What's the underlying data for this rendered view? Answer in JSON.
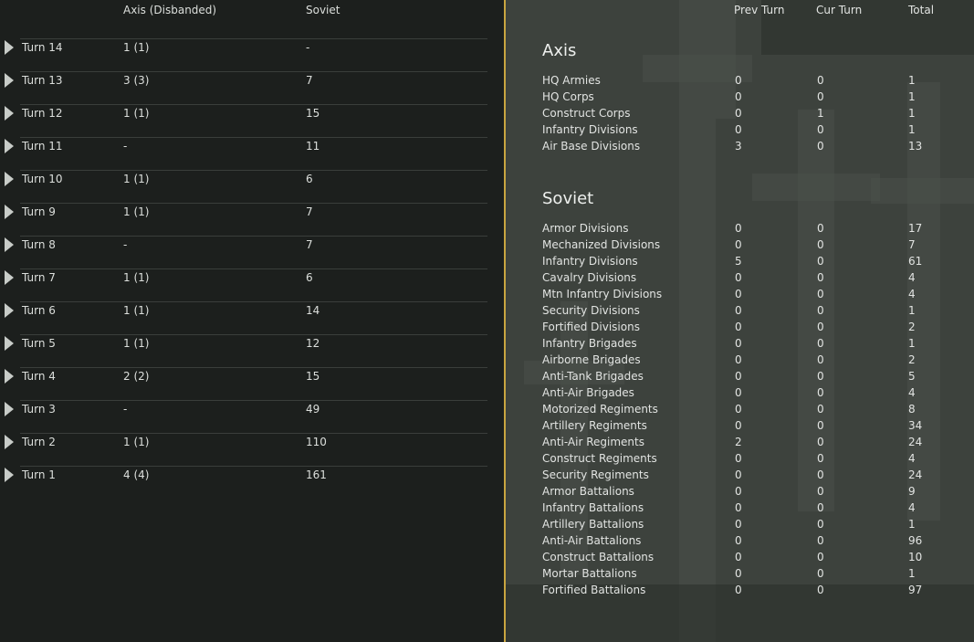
{
  "left": {
    "headers": {
      "axis": "Axis (Disbanded)",
      "soviet": "Soviet"
    },
    "rows": [
      {
        "turn": "Turn 14",
        "axis": "1 (1)",
        "soviet": "-"
      },
      {
        "turn": "Turn 13",
        "axis": "3 (3)",
        "soviet": "7"
      },
      {
        "turn": "Turn 12",
        "axis": "1 (1)",
        "soviet": "15"
      },
      {
        "turn": "Turn 11",
        "axis": "-",
        "soviet": "11"
      },
      {
        "turn": "Turn 10",
        "axis": "1 (1)",
        "soviet": "6"
      },
      {
        "turn": "Turn 9",
        "axis": "1 (1)",
        "soviet": "7"
      },
      {
        "turn": "Turn 8",
        "axis": "-",
        "soviet": "7"
      },
      {
        "turn": "Turn 7",
        "axis": "1 (1)",
        "soviet": "6"
      },
      {
        "turn": "Turn 6",
        "axis": "1 (1)",
        "soviet": "14"
      },
      {
        "turn": "Turn 5",
        "axis": "1 (1)",
        "soviet": "12"
      },
      {
        "turn": "Turn 4",
        "axis": "2 (2)",
        "soviet": "15"
      },
      {
        "turn": "Turn 3",
        "axis": "-",
        "soviet": "49"
      },
      {
        "turn": "Turn 2",
        "axis": "1 (1)",
        "soviet": "110"
      },
      {
        "turn": "Turn 1",
        "axis": "4 (4)",
        "soviet": "161"
      }
    ]
  },
  "right": {
    "headers": {
      "prev": "Prev Turn",
      "cur": "Cur Turn",
      "total": "Total"
    },
    "axis": {
      "title": "Axis",
      "rows": [
        {
          "label": "HQ Armies",
          "prev": "0",
          "cur": "0",
          "total": "1"
        },
        {
          "label": "HQ Corps",
          "prev": "0",
          "cur": "0",
          "total": "1"
        },
        {
          "label": "Construct Corps",
          "prev": "0",
          "cur": "1",
          "total": "1"
        },
        {
          "label": "Infantry Divisions",
          "prev": "0",
          "cur": "0",
          "total": "1"
        },
        {
          "label": "Air Base Divisions",
          "prev": "3",
          "cur": "0",
          "total": "13"
        }
      ]
    },
    "soviet": {
      "title": "Soviet",
      "rows": [
        {
          "label": "Armor Divisions",
          "prev": "0",
          "cur": "0",
          "total": "17"
        },
        {
          "label": "Mechanized Divisions",
          "prev": "0",
          "cur": "0",
          "total": "7"
        },
        {
          "label": "Infantry Divisions",
          "prev": "5",
          "cur": "0",
          "total": "61"
        },
        {
          "label": "Cavalry Divisions",
          "prev": "0",
          "cur": "0",
          "total": "4"
        },
        {
          "label": "Mtn Infantry Divisions",
          "prev": "0",
          "cur": "0",
          "total": "4"
        },
        {
          "label": "Security Divisions",
          "prev": "0",
          "cur": "0",
          "total": "1"
        },
        {
          "label": "Fortified Divisions",
          "prev": "0",
          "cur": "0",
          "total": "2"
        },
        {
          "label": "Infantry Brigades",
          "prev": "0",
          "cur": "0",
          "total": "1"
        },
        {
          "label": "Airborne Brigades",
          "prev": "0",
          "cur": "0",
          "total": "2"
        },
        {
          "label": "Anti-Tank Brigades",
          "prev": "0",
          "cur": "0",
          "total": "5"
        },
        {
          "label": "Anti-Air Brigades",
          "prev": "0",
          "cur": "0",
          "total": "4"
        },
        {
          "label": "Motorized Regiments",
          "prev": "0",
          "cur": "0",
          "total": "8"
        },
        {
          "label": "Artillery Regiments",
          "prev": "0",
          "cur": "0",
          "total": "34"
        },
        {
          "label": "Anti-Air Regiments",
          "prev": "2",
          "cur": "0",
          "total": "24"
        },
        {
          "label": "Construct Regiments",
          "prev": "0",
          "cur": "0",
          "total": "4"
        },
        {
          "label": "Security Regiments",
          "prev": "0",
          "cur": "0",
          "total": "24"
        },
        {
          "label": "Armor Battalions",
          "prev": "0",
          "cur": "0",
          "total": "9"
        },
        {
          "label": "Infantry Battalions",
          "prev": "0",
          "cur": "0",
          "total": "4"
        },
        {
          "label": "Artillery Battalions",
          "prev": "0",
          "cur": "0",
          "total": "1"
        },
        {
          "label": "Anti-Air Battalions",
          "prev": "0",
          "cur": "0",
          "total": "96"
        },
        {
          "label": "Construct Battalions",
          "prev": "0",
          "cur": "0",
          "total": "10"
        },
        {
          "label": "Mortar Battalions",
          "prev": "0",
          "cur": "0",
          "total": "1"
        },
        {
          "label": "Fortified Battalions",
          "prev": "0",
          "cur": "0",
          "total": "97"
        }
      ]
    }
  },
  "colors": {
    "divider": "#c9a540"
  }
}
